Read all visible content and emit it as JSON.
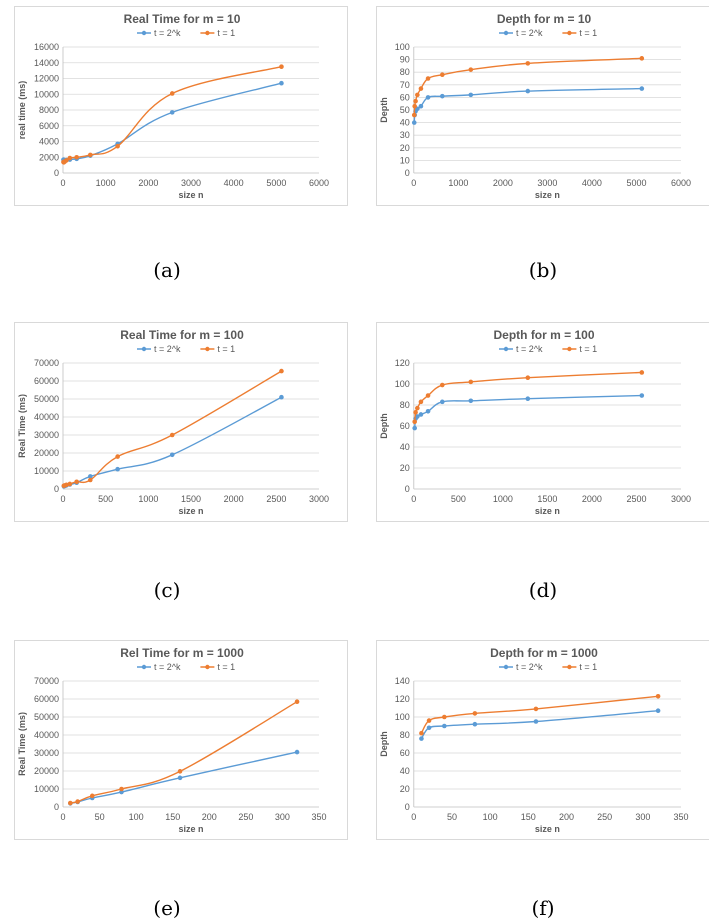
{
  "colors": {
    "blue": "#5b9bd5",
    "orange": "#ed7d31",
    "grid": "#d9d9d9",
    "axis": "#bfbfbf",
    "text": "#595959"
  },
  "chart_data": [
    {
      "type": "line",
      "caption": "(a)",
      "title": "Real Time for m = 10",
      "xlabel": "size n",
      "ylabel": "real time (ms)",
      "xlim": [
        0,
        6000
      ],
      "xticks": [
        0,
        1000,
        2000,
        3000,
        4000,
        5000,
        6000
      ],
      "ylim": [
        0,
        16000
      ],
      "yticks": [
        0,
        2000,
        4000,
        6000,
        8000,
        10000,
        12000,
        14000,
        16000
      ],
      "series": [
        {
          "name": "t = 2^k",
          "color": "#5b9bd5",
          "x": [
            10,
            20,
            40,
            80,
            160,
            320,
            640,
            1280,
            2560,
            5120
          ],
          "y": [
            1700,
            1500,
            1550,
            1650,
            1700,
            1800,
            2200,
            3700,
            7700,
            11400
          ]
        },
        {
          "name": "t = 1",
          "color": "#ed7d31",
          "x": [
            10,
            20,
            40,
            80,
            160,
            320,
            640,
            1280,
            2560,
            5120
          ],
          "y": [
            1400,
            1350,
            1450,
            1600,
            1900,
            2000,
            2300,
            3400,
            10100,
            13500
          ]
        }
      ]
    },
    {
      "type": "line",
      "caption": "(b)",
      "title": "Depth for m = 10",
      "xlabel": "size n",
      "ylabel": "Depth",
      "xlim": [
        0,
        6000
      ],
      "xticks": [
        0,
        1000,
        2000,
        3000,
        4000,
        5000,
        6000
      ],
      "ylim": [
        0,
        100
      ],
      "yticks": [
        0,
        10,
        20,
        30,
        40,
        50,
        60,
        70,
        80,
        90,
        100
      ],
      "series": [
        {
          "name": "t = 2^k",
          "color": "#5b9bd5",
          "x": [
            10,
            20,
            40,
            80,
            160,
            320,
            640,
            1280,
            2560,
            5120
          ],
          "y": [
            40,
            46,
            49,
            51,
            53,
            60,
            61,
            62,
            65,
            67
          ]
        },
        {
          "name": "t = 1",
          "color": "#ed7d31",
          "x": [
            10,
            20,
            40,
            80,
            160,
            320,
            640,
            1280,
            2560,
            5120
          ],
          "y": [
            46,
            53,
            57,
            62,
            67,
            75,
            78,
            82,
            87,
            91
          ]
        }
      ]
    },
    {
      "type": "line",
      "caption": "(c)",
      "title": "Real Time for m = 100",
      "xlabel": "size n",
      "ylabel": "Real Time (ms)",
      "xlim": [
        0,
        3000
      ],
      "xticks": [
        0,
        500,
        1000,
        1500,
        2000,
        2500,
        3000
      ],
      "ylim": [
        0,
        70000
      ],
      "yticks": [
        0,
        10000,
        20000,
        30000,
        40000,
        50000,
        60000,
        70000
      ],
      "series": [
        {
          "name": "t = 2^k",
          "color": "#5b9bd5",
          "x": [
            10,
            20,
            40,
            80,
            160,
            320,
            640,
            1280,
            2560
          ],
          "y": [
            1500,
            1700,
            2000,
            2500,
            3500,
            7000,
            11000,
            19000,
            51000
          ]
        },
        {
          "name": "t = 1",
          "color": "#ed7d31",
          "x": [
            10,
            20,
            40,
            80,
            160,
            320,
            640,
            1280,
            2560
          ],
          "y": [
            1800,
            2000,
            2300,
            2800,
            4000,
            5000,
            18000,
            30000,
            65500
          ]
        }
      ]
    },
    {
      "type": "line",
      "caption": "(d)",
      "title": "Depth for m = 100",
      "xlabel": "size n",
      "ylabel": "Depth",
      "xlim": [
        0,
        3000
      ],
      "xticks": [
        0,
        500,
        1000,
        1500,
        2000,
        2500,
        3000
      ],
      "ylim": [
        0,
        120
      ],
      "yticks": [
        0,
        20,
        40,
        60,
        80,
        100,
        120
      ],
      "series": [
        {
          "name": "t = 2^k",
          "color": "#5b9bd5",
          "x": [
            10,
            20,
            40,
            80,
            160,
            320,
            640,
            1280,
            2560
          ],
          "y": [
            58,
            67,
            69,
            71,
            74,
            83,
            84,
            86,
            89
          ]
        },
        {
          "name": "t = 1",
          "color": "#ed7d31",
          "x": [
            10,
            20,
            40,
            80,
            160,
            320,
            640,
            1280,
            2560
          ],
          "y": [
            64,
            73,
            77,
            83,
            89,
            99,
            102,
            106,
            111
          ]
        }
      ]
    },
    {
      "type": "line",
      "caption": "(e)",
      "title": "Rel Time for m = 1000",
      "xlabel": "size n",
      "ylabel": "Real Time (ms)",
      "xlim": [
        0,
        350
      ],
      "xticks": [
        0,
        50,
        100,
        150,
        200,
        250,
        300,
        350
      ],
      "ylim": [
        0,
        70000
      ],
      "yticks": [
        0,
        10000,
        20000,
        30000,
        40000,
        50000,
        60000,
        70000
      ],
      "series": [
        {
          "name": "t = 2^k",
          "color": "#5b9bd5",
          "x": [
            10,
            20,
            40,
            80,
            160,
            320
          ],
          "y": [
            2000,
            2800,
            5000,
            8300,
            16200,
            30500
          ]
        },
        {
          "name": "t = 1",
          "color": "#ed7d31",
          "x": [
            10,
            20,
            40,
            80,
            160,
            320
          ],
          "y": [
            2200,
            3000,
            6200,
            10000,
            19800,
            58500
          ]
        }
      ]
    },
    {
      "type": "line",
      "caption": "(f)",
      "title": "Depth for m = 1000",
      "xlabel": "size n",
      "ylabel": "Depth",
      "xlim": [
        0,
        350
      ],
      "xticks": [
        0,
        50,
        100,
        150,
        200,
        250,
        300,
        350
      ],
      "ylim": [
        0,
        140
      ],
      "yticks": [
        0,
        20,
        40,
        60,
        80,
        100,
        120,
        140
      ],
      "series": [
        {
          "name": "t = 2^k",
          "color": "#5b9bd5",
          "x": [
            10,
            20,
            40,
            80,
            160,
            320
          ],
          "y": [
            76,
            88,
            90,
            92,
            95,
            107
          ]
        },
        {
          "name": "t = 1",
          "color": "#ed7d31",
          "x": [
            10,
            20,
            40,
            80,
            160,
            320
          ],
          "y": [
            82,
            96,
            100,
            104,
            109,
            123
          ]
        }
      ]
    }
  ]
}
